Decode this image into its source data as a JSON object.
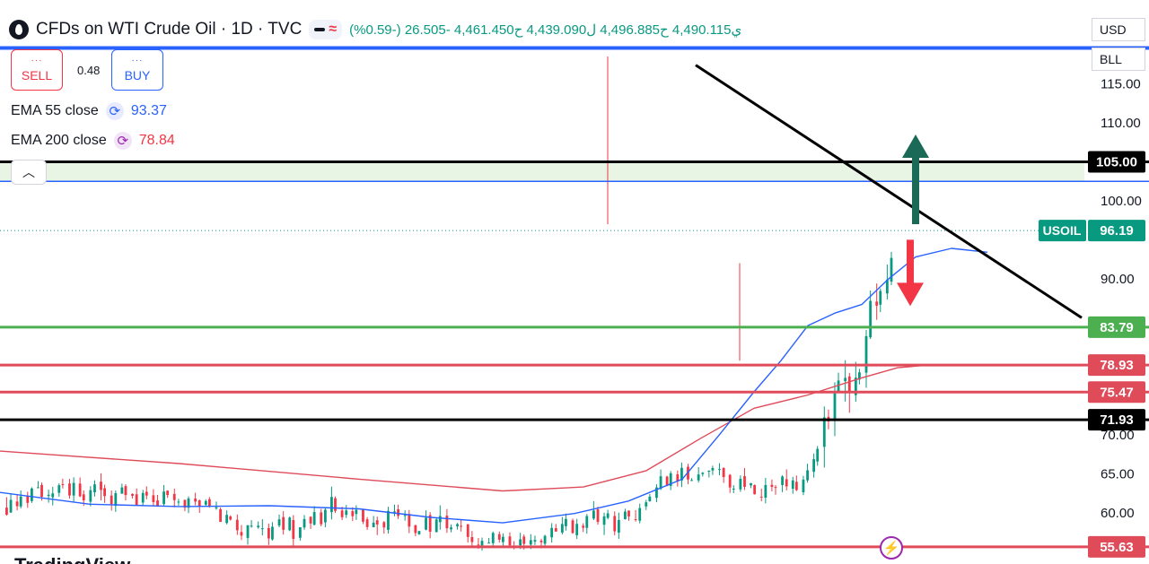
{
  "header": {
    "title": "CFDs on WTI Crude Oil · 1D · TVC",
    "ohlc_text": "ي4,490.115 ح4,496.885 ل4,439.090 ح4,461.450 -26.505 (-0.59%)",
    "logo_icon": "oil-drop-icon"
  },
  "trade": {
    "sell_label": "SELL",
    "buy_label": "BUY",
    "spread": "0.48"
  },
  "indicators": [
    {
      "label": "EMA 55 close",
      "value": "93.37",
      "color": "#2962ff"
    },
    {
      "label": "EMA 200 close",
      "value": "78.84",
      "color": "#f23645"
    }
  ],
  "controls": {
    "currency": "USD",
    "unit": "BLL",
    "collapse_icon": "chevron-up-icon"
  },
  "watermark": "TradingView",
  "chart_data": {
    "type": "candlestick",
    "ylim": [
      54,
      120
    ],
    "y_ticks": [
      "115.00",
      "110.00",
      "100.00",
      "90.00",
      "70.00",
      "65.00",
      "60.00"
    ],
    "current_price": {
      "symbol": "USOIL",
      "value": "96.19"
    },
    "levels": [
      {
        "value": 119.6,
        "color": "#2962ff",
        "label": ""
      },
      {
        "value": 105.0,
        "color": "#000000",
        "label": "105.00"
      },
      {
        "value": 102.5,
        "color": "#2962ff",
        "label": ""
      },
      {
        "value": 83.79,
        "color": "#4caf50",
        "label": "83.79"
      },
      {
        "value": 78.93,
        "color": "#e04b5a",
        "label": "78.93"
      },
      {
        "value": 75.47,
        "color": "#e04b5a",
        "label": "75.47"
      },
      {
        "value": 71.93,
        "color": "#000000",
        "label": "71.93"
      },
      {
        "value": 55.63,
        "color": "#e04b5a",
        "label": "55.63"
      }
    ],
    "zone": [
      102.5,
      105.0
    ],
    "ema55": [
      [
        0,
        62.6
      ],
      [
        100,
        61.1
      ],
      [
        200,
        60.8
      ],
      [
        300,
        60.9
      ],
      [
        400,
        60.5
      ],
      [
        480,
        59.4
      ],
      [
        560,
        58.7
      ],
      [
        640,
        59.9
      ],
      [
        700,
        61.5
      ],
      [
        760,
        64.3
      ],
      [
        800,
        69.8
      ],
      [
        840,
        75.5
      ],
      [
        870,
        79.5
      ],
      [
        900,
        84.0
      ],
      [
        930,
        85.6
      ],
      [
        960,
        86.7
      ],
      [
        990,
        90.0
      ],
      [
        1020,
        92.8
      ],
      [
        1060,
        93.9
      ],
      [
        1100,
        93.4
      ]
    ],
    "ema200": [
      [
        0,
        67.9
      ],
      [
        200,
        66.3
      ],
      [
        400,
        64.3
      ],
      [
        560,
        62.8
      ],
      [
        650,
        63.3
      ],
      [
        720,
        65.4
      ],
      [
        780,
        69.5
      ],
      [
        840,
        73.4
      ],
      [
        900,
        75.1
      ],
      [
        960,
        77.3
      ],
      [
        1000,
        78.6
      ],
      [
        1040,
        79.0
      ]
    ],
    "trendline": [
      [
        775,
        117.4
      ],
      [
        1205,
        85.0
      ]
    ],
    "arrows": [
      {
        "direction": "up",
        "color": "#1b6a57",
        "from": 97.0,
        "to": 108.5
      },
      {
        "direction": "down",
        "color": "#f23645",
        "from": 95.0,
        "to": 86.5
      }
    ],
    "candles": [
      [
        -2.9,
        -1.85,
        2.85,
        -0.28
      ],
      [
        2.33,
        3.61,
        -2.67,
        -0.19
      ],
      [
        -1.81,
        -1.47,
        -2.95,
        1.7
      ],
      [
        -0.29,
        0.74,
        2.44,
        -0.8
      ],
      [
        0.24,
        -1.63,
        1.82,
        2.02
      ],
      [
        1.89,
        2.53,
        0.46,
        0.78
      ],
      [
        1.07,
        1.69,
        -2.53,
        -0.31
      ],
      [
        2.37,
        -1.57,
        -1.04,
        -1.54
      ],
      [
        0.87,
        -1.55,
        2.09,
        -2.72
      ],
      [
        -2.74,
        -1.14,
        -1.78,
        -2.19
      ],
      [
        0.6,
        0.07,
        0.73,
        -1.57
      ],
      [
        1.1,
        0.55,
        2.23,
        1.61
      ],
      [
        1.08,
        -2.32,
        -1.85,
        -1.25
      ],
      [
        -0.01,
        2.97,
        2.27,
        2.64
      ],
      [
        -0.76,
        -2.42,
        -2.5,
        -0.41
      ],
      [
        2.04,
        -2.86,
        1.59,
        -2.27
      ],
      [
        -1.48,
        0.31,
        1.66,
        -1.87
      ],
      [
        -2.2,
        2.24,
        -1.66,
        -1.75
      ],
      [
        2.9,
        0.61,
        -2.27,
        2.82
      ],
      [
        1.94,
        -0.53,
        -1.41,
        2.77
      ],
      [
        0.54,
        -2.57,
        2.06,
        2.6
      ],
      [
        -1.7,
        1.17,
        -1.09,
        2.48
      ],
      [
        -0.57,
        2.76,
        -1.54,
        -0.08
      ],
      [
        1.41,
        0.6,
        -0.75,
        -2.19
      ],
      [
        1.22,
        0.38,
        0.22,
        -1.09
      ],
      [
        1.62,
        -2.21,
        2.37,
        0.27
      ],
      [
        2.47,
        1.18,
        -1.28,
        -1.49
      ],
      [
        1.29,
        0.45,
        -2.2,
        -1.54
      ],
      [
        0.34,
        -1.41,
        -2.47,
        -1.53
      ],
      [
        1.8,
        -2.62,
        2.23,
        0.17
      ],
      [
        2.43,
        1.58,
        -2.68,
        0.7
      ],
      [
        0.96,
        0.6,
        -0.15,
        -1.19
      ],
      [
        1.13,
        -0.85,
        2.2,
        -2.96
      ],
      [
        -2.42,
        -1.28,
        1.15,
        1.31
      ],
      [
        1.82,
        -2.99,
        0.14,
        -1.48
      ],
      [
        -0.12,
        -0.38,
        -0.84,
        -2.18
      ],
      [
        -0.11,
        -0.41,
        2.37,
        -1.54
      ],
      [
        1.3,
        -0.86,
        -0.33,
        -2.74
      ],
      [
        1.48,
        1.45,
        -0.72,
        0.45
      ],
      [
        1.91,
        0.8,
        -0.89,
        0.53
      ],
      [
        -2.23,
        1.38,
        -2.34,
        -0.56
      ],
      [
        -2.11,
        -2.3,
        0.73,
        -0.01
      ],
      [
        -1.19,
        0.93,
        -1.84,
        0.56
      ],
      [
        -1.76,
        0.45,
        0.49,
        -0.43
      ],
      [
        -0.28,
        -1.75,
        -2.17,
        1.9
      ],
      [
        -1.85,
        -2.43,
        2.85,
        -1.77
      ],
      [
        -2.42,
        2.45,
        -0.12,
        2.73
      ],
      [
        -0.79,
        2.13,
        -2.25,
        -0.7
      ],
      [
        -1.8,
        2.95,
        -1.77,
        0.57
      ],
      [
        -2.8,
        1.17,
        2.46,
        -1.89
      ],
      [
        0.22,
        -1.61,
        -1.84,
        -2.67
      ],
      [
        -1.04,
        1.44,
        1.88,
        0.5
      ],
      [
        1.29,
        2.88,
        -1.95,
        -0.7
      ],
      [
        2.37,
        -2.73,
        2.4,
        1.97
      ],
      [
        -0.54,
        2.77,
        -0.46,
        -0.36
      ],
      [
        -2.67,
        -2.74,
        -1.36,
        -1.96
      ],
      [
        1.17,
        -1.29,
        -0.03,
        -1.17
      ],
      [
        -0.25,
        0.58,
        -1.63,
        0.93
      ],
      [
        2.41,
        -1.16,
        0.23,
        -2.24
      ],
      [
        -1.31,
        1.8,
        -2.41,
        -0.3
      ],
      [
        -0.33,
        -2.32,
        1.45,
        -0.87
      ],
      [
        1.99,
        2.44,
        -0.96,
        -2.01
      ],
      [
        -2.58,
        2.99,
        2.8,
        -1.97
      ],
      [
        -1.39,
        -2.06,
        -0.78,
        0.85
      ],
      [
        0.53,
        -0.94,
        1.5,
        1.15
      ],
      [
        2.49,
        1.16,
        -2.22,
        -1.28
      ],
      [
        -0.71,
        -0.31,
        -1.56,
        1.96
      ],
      [
        2.39,
        1.68,
        1.87,
        2.41
      ],
      [
        0.85,
        -1.52,
        0.06,
        0.98
      ],
      [
        2.51,
        -1.93,
        -0.59,
        -0.76
      ],
      [
        -0.07,
        -1.48,
        2.75,
        -0.09
      ],
      [
        2.63,
        -1.2,
        -1.0,
        -2.9
      ],
      [
        2.4,
        -2.48,
        0.48,
        -2.52
      ],
      [
        -2.59,
        1.97,
        -1.13,
        1.01
      ],
      [
        -1.44,
        2.42,
        2.78,
        1.6
      ],
      [
        2.27,
        1.31,
        1.88,
        1.26
      ],
      [
        0.44,
        1.82,
        -1.96,
        -2.08
      ],
      [
        1.13,
        -2.31,
        1.61,
        -2.67
      ],
      [
        1.48,
        -2.79,
        0.2,
        1.3
      ],
      [
        -1.29,
        -1.96,
        0.01,
        0.31
      ],
      [
        1.43,
        2.09,
        2.98,
        0.25
      ],
      [
        2.81,
        -1.1,
        0.81,
        1.79
      ],
      [
        -0.38,
        2.85,
        0.51,
        0.13
      ],
      [
        -2.89,
        2.22,
        2.91,
        -2.04
      ],
      [
        0.4,
        -2.08,
        2.71,
        -1.86
      ],
      [
        -1.13,
        0.59,
        -1.27,
        -1.21
      ],
      [
        1.12,
        1.81,
        0.46,
        -1.27
      ],
      [
        -1.92,
        1.38,
        -2.67,
        2.05
      ],
      [
        2.33,
        -2.35,
        -0.13,
        -2.28
      ],
      [
        -0.17,
        -2.68,
        2.47,
        -2.33
      ],
      [
        -2.69,
        -2.35,
        -1.79,
        0.95
      ],
      [
        -0.03,
        -2.08,
        -1.32,
        -2.07
      ],
      [
        -2.05,
        -2.48,
        -1.9,
        0.14
      ],
      [
        -0.52,
        0.42,
        -0.56,
        -1.12
      ],
      [
        -1.33,
        -1.4,
        -1.09,
        -1.17
      ],
      [
        -2.55,
        -0.29,
        -0.93,
        1.4
      ],
      [
        0.38,
        -2.75,
        1.65,
        0.14
      ],
      [
        -0.4,
        -2.93,
        -1.84,
        -1.21
      ],
      [
        1.13,
        -1.11,
        -2.66,
        1.46
      ],
      [
        2.91,
        -1.75,
        0.6,
        -1.53
      ],
      [
        -0.67,
        -1.75,
        -2.43,
        1.82
      ],
      [
        -1.64,
        -1.91,
        -1.76,
        1.35
      ],
      [
        -0.7,
        -2.77,
        0.76,
        -2.44
      ],
      [
        -1.53,
        -1.14,
        0.49,
        -1.27
      ],
      [
        -1.58,
        0.93,
        1.93,
        -2.13
      ],
      [
        -0.32,
        -0.31,
        -1.69,
        -0.06
      ],
      [
        -1.05,
        1.62,
        -2.9,
        -0.79
      ],
      [
        -2.28,
        2.87,
        2.22,
        -1.77
      ],
      [
        -1.49,
        -2.19,
        -0.74,
        0.27
      ],
      [
        -2.38,
        0.82,
        -2.02,
        -1.54
      ],
      [
        -1.96,
        -0.71,
        -1.01,
        -1.78
      ],
      [
        -0.2,
        2.16,
        -0.85,
        2.34
      ],
      [
        -2.7,
        2.19,
        -2.56,
        0.41
      ],
      [
        1.36,
        -1.92,
        -1.08,
        -1.1
      ],
      [
        -2.99,
        0.5,
        -0.98,
        2.8
      ],
      [
        -1.67,
        1.16,
        -1.43,
        -0.58
      ],
      [
        -2.85,
        -2.94,
        1.25,
        1.06
      ],
      [
        -1.37,
        2.9,
        -2.99,
        2.55
      ],
      [
        0.87,
        0.34,
        1.15,
        0.16
      ],
      [
        0.99,
        -2.18,
        -0.06,
        1.72
      ],
      [
        -2.89,
        -2.8,
        -2.47,
        0.51
      ],
      [
        -1.1,
        -0.34,
        1.82,
        1.1
      ],
      [
        1.74,
        -1.47,
        -0.99,
        1.47
      ],
      [
        1.08,
        -0.96,
        -1.09,
        0.18
      ],
      [
        -1.32,
        0.54,
        1.3,
        -1.78
      ],
      [
        -1.51,
        2.82,
        -2.74,
        0.52
      ],
      [
        -0.44,
        -1.22,
        0.36,
        0.17
      ],
      [
        -0.12,
        1.74,
        -0.9,
        1.69
      ],
      [
        -1.05,
        -2.18,
        1.54,
        2.1
      ],
      [
        0.96,
        2.72,
        -2.17,
        -2.68
      ],
      [
        1.14,
        -1.47,
        -1.22,
        1.92
      ],
      [
        -1.35,
        -1.24,
        0.78,
        0.17
      ],
      [
        -0.36,
        0.54,
        -2.98,
        -0.9
      ],
      [
        0.37,
        1.21,
        0.28,
        -0.96
      ],
      [
        1.55,
        1.96,
        0.19,
        -2.52
      ],
      [
        0.38,
        2.9,
        0.97,
        1.87
      ],
      [
        -1.56,
        2.8,
        -2.4,
        -2.31
      ],
      [
        1.18,
        0.73,
        -0.27,
        -2.39
      ],
      [
        2.32,
        -2.84,
        -0.31,
        -2.24
      ],
      [
        -1.54,
        -2.21,
        -1.41,
        -1.71
      ],
      [
        -0.79,
        0.78,
        1.38,
        1.0
      ],
      [
        2.8,
        -0.86,
        2.21,
        -0.87
      ],
      [
        1.53,
        -0.06,
        0.18,
        1.1
      ],
      [
        -1.89,
        -2.96,
        0.25,
        -0.11
      ],
      [
        -2.57,
        -2.45,
        2.2,
        -1.02
      ],
      [
        -0.12,
        0.7,
        2.9,
        -2.31
      ],
      [
        0.18,
        -0.17,
        -2.16,
        1.87
      ],
      [
        -0.2,
        -0.22,
        -0.76,
        2.82
      ],
      [
        2.91,
        2.14,
        0.36,
        1.93
      ],
      [
        -2.84,
        0.41,
        -2.66,
        1.1
      ],
      [
        -2.45,
        2.55,
        1.45,
        2.03
      ],
      [
        -1.51,
        -2.98,
        -2.56,
        0.43
      ],
      [
        -2.37,
        2.42,
        -1.53,
        1.17
      ],
      [
        -0.76,
        -2.91,
        2.67,
        0.95
      ],
      [
        -1.64,
        2.17,
        -2.31,
        -2.38
      ],
      [
        -2.44,
        -2.05,
        -1.16,
        -1.72
      ],
      [
        2.14,
        1.33,
        -1.54,
        -2.92
      ],
      [
        0.6,
        -0.03,
        -1.0,
        1.12
      ],
      [
        1.37,
        1.77,
        1.57,
        -2.26
      ],
      [
        2.04,
        1.81,
        1.11,
        0.06
      ],
      [
        -0.64,
        0.84,
        -2.49,
        2.88
      ],
      [
        1.53,
        -1.87,
        0.51,
        -2.81
      ],
      [
        -2.5,
        -1.6,
        2.23,
        -0.92
      ],
      [
        -2.05,
        -2.31,
        0.5,
        -0.69
      ],
      [
        -0.27,
        1.54,
        -0.88,
        2.14
      ],
      [
        -1.26,
        1.05,
        1.47,
        0.23
      ],
      [
        -0.75,
        -1.27,
        -2.56,
        1.99
      ],
      [
        1.11,
        -1.66,
        -0.34,
        -1.06
      ],
      [
        -2.69,
        -1.59,
        -1.41,
        -0.56
      ],
      [
        -2.16,
        -0.71,
        0.83,
        0.49
      ]
    ]
  }
}
